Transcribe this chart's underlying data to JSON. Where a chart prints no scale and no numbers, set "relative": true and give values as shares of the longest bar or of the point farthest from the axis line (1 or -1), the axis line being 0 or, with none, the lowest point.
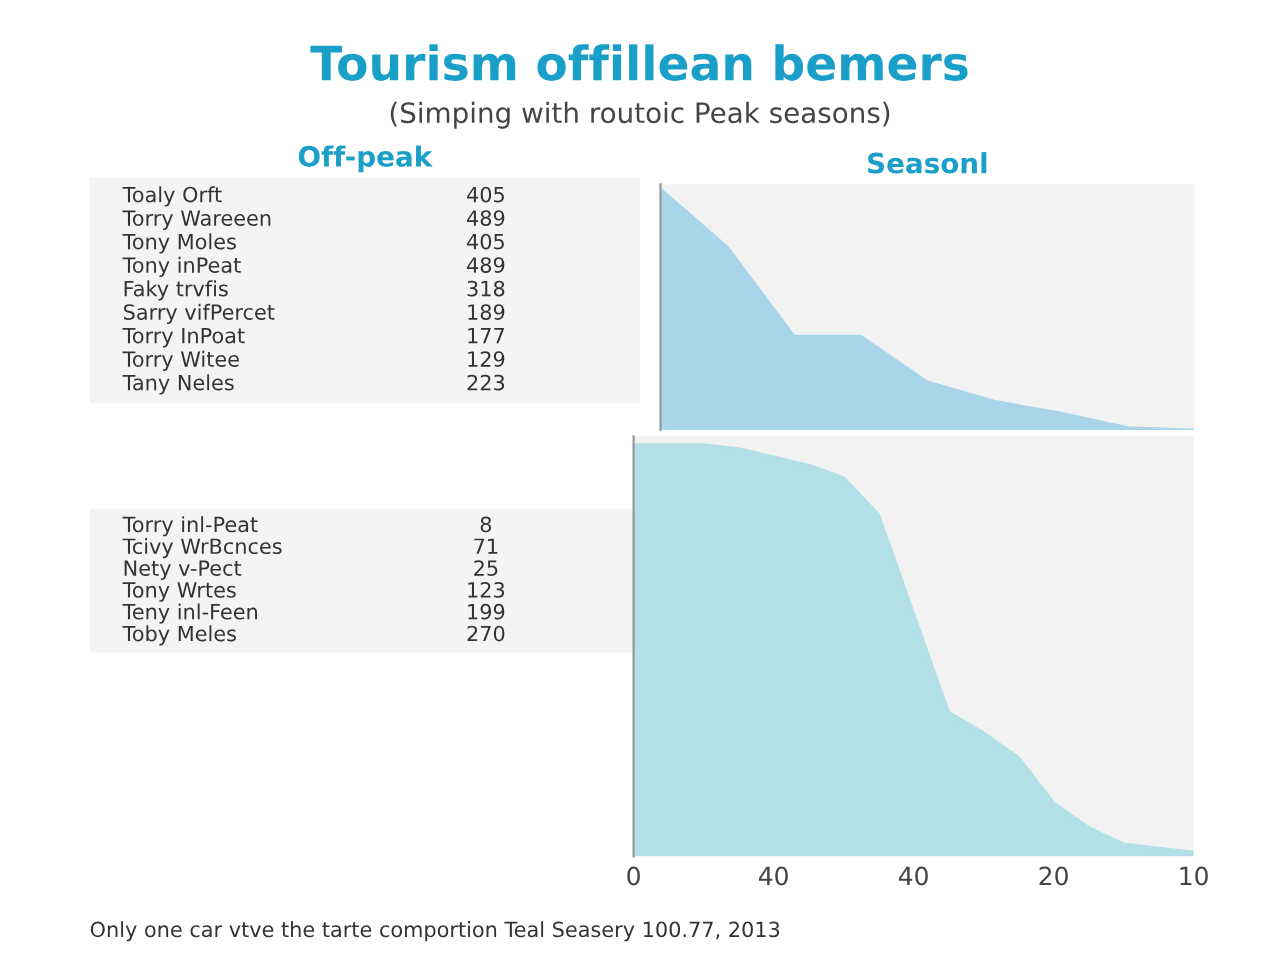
{
  "chart_data": [
    {
      "type": "other",
      "title": "Tourism offillean bemers",
      "subtitle": "(Simping with routoic Peak seasons)",
      "annotations": [
        "Off-peak"
      ],
      "categories": [
        "Toaly Orft",
        "Torry Wareeen",
        "Tony Moles",
        "Tony inPeat",
        "Faky trvfis",
        "Sarry vifPercet",
        "Torry InPoat",
        "Torry Witee",
        "Tany Neles"
      ],
      "values": [
        405,
        489,
        405,
        489,
        318,
        189,
        177,
        129,
        223
      ],
      "data_labels": true
    },
    {
      "type": "area",
      "title": "Seasonl",
      "relative": true,
      "categories": [
        null,
        null,
        null,
        null,
        null,
        null,
        null,
        null,
        null
      ],
      "series": [
        {
          "color": "#a8d5ea",
          "values": [
            1.0,
            0.76,
            0.39,
            0.39,
            0.2,
            0.12,
            0.07,
            0.01,
            0.0
          ]
        }
      ]
    },
    {
      "type": "other",
      "categories": [
        "Torry inl-Peat",
        "Tcivy WrBcnces",
        "Nety v-Pect",
        "Tony Wrtes",
        "Teny inl-Feen",
        "Toby Meles"
      ],
      "values": [
        8,
        71,
        25,
        123,
        199,
        270
      ],
      "data_labels": true
    },
    {
      "type": "area",
      "relative": true,
      "annotations": [
        "Only one car vtve the tarte comportion Teal Seasery 100.77, 2013"
      ],
      "categories": [
        "0",
        null,
        null,
        null,
        "40",
        null,
        null,
        null,
        "40",
        null,
        null,
        null,
        "20",
        null,
        null,
        null,
        "10"
      ],
      "series": [
        {
          "color": "#b3dfe6",
          "values": [
            1.0,
            1.0,
            1.0,
            0.99,
            0.97,
            0.95,
            0.92,
            0.83,
            0.59,
            0.35,
            0.3,
            0.24,
            0.13,
            0.07,
            0.03,
            0.02,
            0.01
          ]
        }
      ]
    }
  ]
}
